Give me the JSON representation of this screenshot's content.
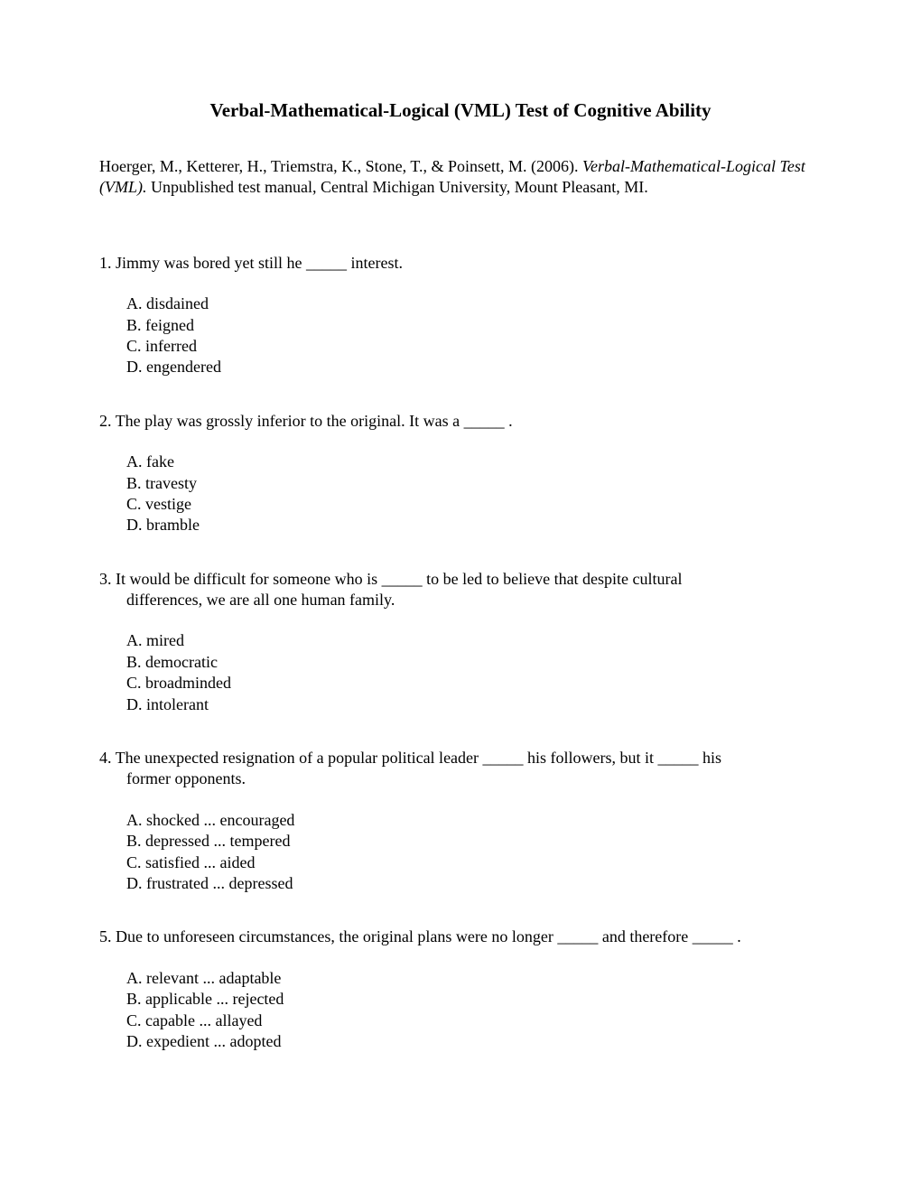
{
  "title": "Verbal-Mathematical-Logical (VML) Test of Cognitive Ability",
  "citation": {
    "authors": "Hoerger, M., Ketterer, H., Triemstra, K., Stone, T., & Poinsett, M. (2006). ",
    "title_italic": "Verbal-Mathematical-Logical Test (VML).",
    "publisher": " Unpublished test manual, Central Michigan University, Mount Pleasant, MI."
  },
  "questions": [
    {
      "number": "1.",
      "text": "Jimmy was bored yet still he _____ interest.",
      "continuation": "",
      "options": [
        "A. disdained",
        "B. feigned",
        "C. inferred",
        "D. engendered"
      ]
    },
    {
      "number": "2.",
      "text": "The play was grossly inferior to the original.  It was a _____ .",
      "continuation": "",
      "options": [
        "A. fake",
        "B. travesty",
        "C. vestige",
        "D. bramble"
      ]
    },
    {
      "number": "3.",
      "text": "It would be difficult for someone who is _____ to be led to believe that despite cultural",
      "continuation": "differences, we are all one human family.",
      "options": [
        "A. mired",
        "B. democratic",
        "C. broadminded",
        "D. intolerant"
      ]
    },
    {
      "number": "4.",
      "text": "The unexpected resignation of a popular political leader _____ his followers, but it _____ his",
      "continuation": "former opponents.",
      "options": [
        "A. shocked ... encouraged",
        "B. depressed ... tempered",
        "C. satisfied ... aided",
        "D. frustrated ... depressed"
      ]
    },
    {
      "number": "5.",
      "text": "Due to unforeseen circumstances, the original plans were no longer _____ and therefore _____ .",
      "continuation": "",
      "options": [
        "A. relevant ... adaptable",
        "B. applicable ... rejected",
        "C. capable ... allayed",
        "D. expedient ... adopted"
      ]
    }
  ],
  "typography": {
    "title_fontsize": 21,
    "body_fontsize": 18,
    "font_family": "Times New Roman",
    "text_color": "#000000",
    "background_color": "#ffffff"
  }
}
